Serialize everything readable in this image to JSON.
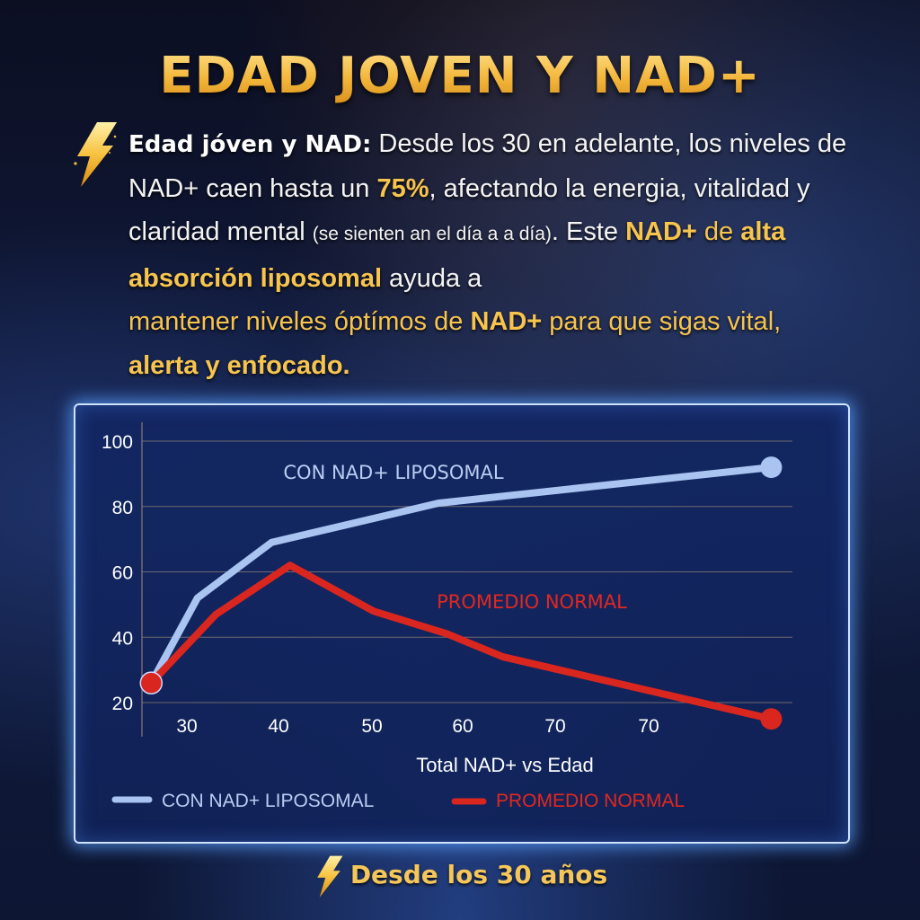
{
  "header": {
    "title": "EDAD JOVEN Y NAD+"
  },
  "intro": {
    "icon": "lightning-bolt-icon",
    "lead": "Edad jóven y NAD:",
    "t1": " Desde los 30 en adelante, los niveles de NAD+ caen hasta un ",
    "pct": "75%",
    "t2": ", afectando la energia, vitalidad y claridad mental ",
    "small": "(se sienten an el día a a día)",
    "t3": ". Este ",
    "hl1": "NAD+",
    "t4": " de ",
    "hl2": "alta absorción liposomal",
    "t5": " ayuda a ",
    "hl3a": "mantener niveles óptímos de ",
    "hl3b": "NAD+",
    "hl3c": " para que sigas vital, ",
    "hl4": "alerta y enfocado."
  },
  "footer": {
    "icon": "lightning-bolt-icon",
    "text": "Desde los 30 años"
  },
  "colors": {
    "gold": "#f5c04a",
    "blue_line": "#a9c4f0",
    "red_line": "#d9261f",
    "panel_border": "#cfe3ff"
  },
  "chart_data": {
    "type": "line",
    "title": "Total NAD+ vs Edad",
    "xlabel": "Total NAD+ vs Edad",
    "ylabel": "",
    "x_tick_labels": [
      "30",
      "40",
      "50",
      "60",
      "70",
      "70"
    ],
    "y_tick_labels": [
      "100",
      "80",
      "60",
      "40",
      "20"
    ],
    "ylim": [
      20,
      100
    ],
    "grid": true,
    "legend_position": "bottom",
    "annotations": [
      "CON NAD+ LIPOSOMAL",
      "PROMEDIO NORMAL"
    ],
    "series": [
      {
        "name": "CON NAD+ LIPOSOMAL",
        "color": "#a9c4f0",
        "x": [
          26,
          31,
          39,
          57,
          93
        ],
        "values": [
          26,
          52,
          69,
          81,
          92
        ]
      },
      {
        "name": "PROMEDIO NORMAL",
        "color": "#d9261f",
        "x": [
          26,
          33,
          41,
          50,
          58,
          64,
          93
        ],
        "values": [
          26,
          47,
          62,
          48,
          41,
          34,
          15
        ]
      }
    ]
  }
}
